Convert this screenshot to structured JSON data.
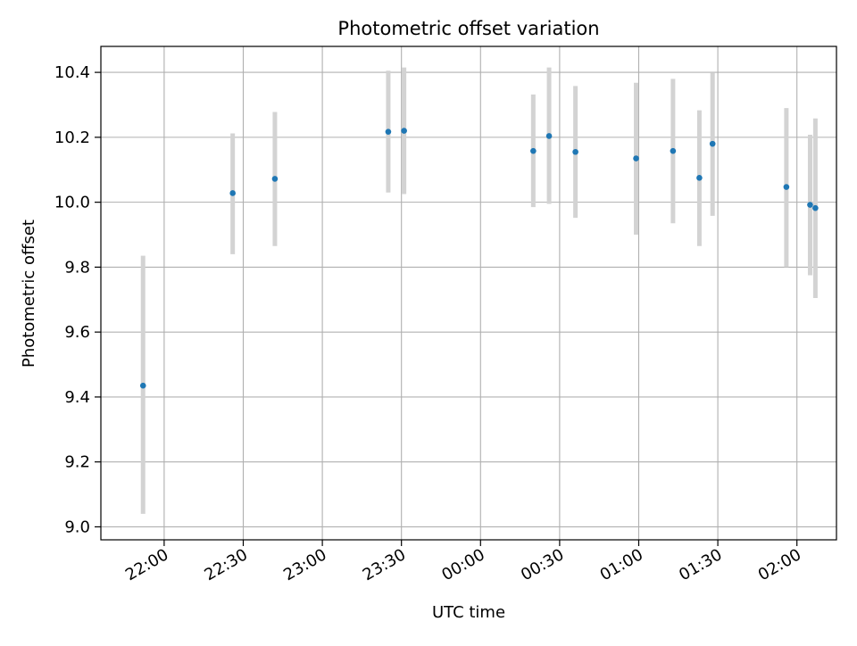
{
  "chart_data": {
    "type": "scatter",
    "title": "Photometric offset variation",
    "xlabel": "UTC time",
    "ylabel": "Photometric offset",
    "x_ticks": [
      "22:00",
      "22:30",
      "23:00",
      "23:30",
      "00:00",
      "00:30",
      "01:00",
      "01:30",
      "02:00"
    ],
    "x_tick_minutes": [
      1320,
      1350,
      1380,
      1410,
      1440,
      1470,
      1500,
      1530,
      1560
    ],
    "xlim_minutes": [
      1296,
      1575
    ],
    "y_ticks": [
      "9.0",
      "9.2",
      "9.4",
      "9.6",
      "9.8",
      "10.0",
      "10.2",
      "10.4"
    ],
    "y_tick_values": [
      9.0,
      9.2,
      9.4,
      9.6,
      9.8,
      10.0,
      10.2,
      10.4
    ],
    "ylim": [
      8.96,
      10.48
    ],
    "grid": true,
    "marker_color": "#1f77b4",
    "errorbar_color": "#d3d3d3",
    "points": [
      {
        "time": "21:52",
        "y": 9.435,
        "ylow": 9.04,
        "yhigh": 9.835
      },
      {
        "time": "22:26",
        "y": 10.028,
        "ylow": 9.84,
        "yhigh": 10.212
      },
      {
        "time": "22:42",
        "y": 10.072,
        "ylow": 9.865,
        "yhigh": 10.278
      },
      {
        "time": "23:25",
        "y": 10.217,
        "ylow": 10.03,
        "yhigh": 10.405
      },
      {
        "time": "23:31",
        "y": 10.22,
        "ylow": 10.025,
        "yhigh": 10.415
      },
      {
        "time": "00:20",
        "y": 10.158,
        "ylow": 9.985,
        "yhigh": 10.332
      },
      {
        "time": "00:26",
        "y": 10.204,
        "ylow": 9.995,
        "yhigh": 10.415
      },
      {
        "time": "00:36",
        "y": 10.155,
        "ylow": 9.952,
        "yhigh": 10.358
      },
      {
        "time": "00:59",
        "y": 10.135,
        "ylow": 9.9,
        "yhigh": 10.368
      },
      {
        "time": "01:13",
        "y": 10.158,
        "ylow": 9.935,
        "yhigh": 10.38
      },
      {
        "time": "01:23",
        "y": 10.075,
        "ylow": 9.865,
        "yhigh": 10.283
      },
      {
        "time": "01:28",
        "y": 10.18,
        "ylow": 9.958,
        "yhigh": 10.398
      },
      {
        "time": "01:56",
        "y": 10.047,
        "ylow": 9.8,
        "yhigh": 10.29
      },
      {
        "time": "02:05",
        "y": 9.992,
        "ylow": 9.775,
        "yhigh": 10.208
      },
      {
        "time": "02:07",
        "y": 9.982,
        "ylow": 9.705,
        "yhigh": 10.258
      }
    ]
  }
}
